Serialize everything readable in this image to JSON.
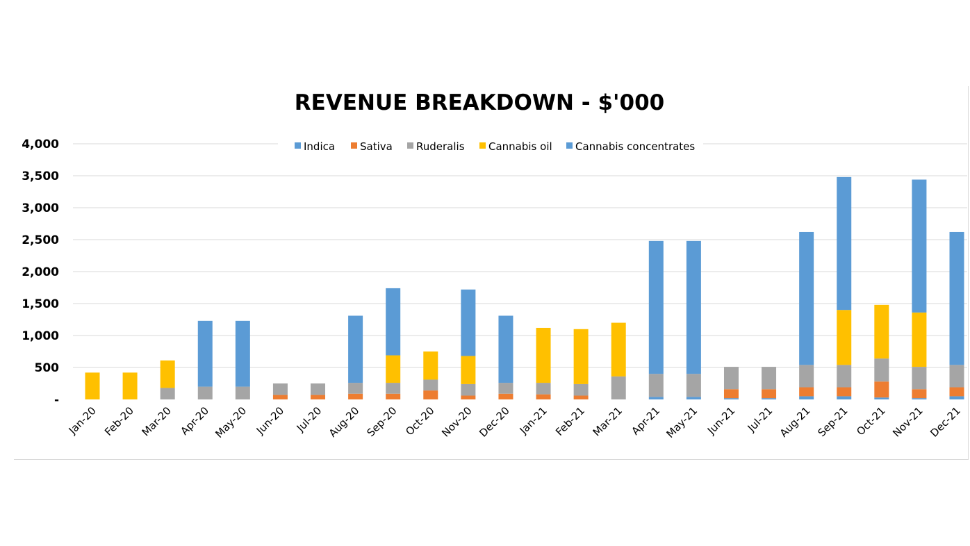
{
  "chart_data": {
    "type": "bar",
    "stacked": true,
    "title": "REVENUE BREAKDOWN - $'000",
    "xlabel": "",
    "ylabel": "",
    "ylim": [
      0,
      4000
    ],
    "yticks": [
      0,
      500,
      1000,
      1500,
      2000,
      2500,
      3000,
      3500,
      4000
    ],
    "ytick_labels": [
      "-",
      "500",
      "1,000",
      "1,500",
      "2,000",
      "2,500",
      "3,000",
      "3,500",
      "4,000"
    ],
    "grid": true,
    "legend_position": "top",
    "categories": [
      "Jan-20",
      "Feb-20",
      "Mar-20",
      "Apr-20",
      "May-20",
      "Jun-20",
      "Jul-20",
      "Aug-20",
      "Sep-20",
      "Oct-20",
      "Nov-20",
      "Dec-20",
      "Jan-21",
      "Feb-21",
      "Mar-21",
      "Apr-21",
      "May-21",
      "Jun-21",
      "Jul-21",
      "Aug-21",
      "Sep-21",
      "Oct-21",
      "Nov-21",
      "Dec-21"
    ],
    "series": [
      {
        "name": "Indica",
        "color": "#5b9bd5",
        "values": [
          0,
          0,
          0,
          0,
          0,
          0,
          0,
          0,
          0,
          0,
          0,
          0,
          0,
          0,
          0,
          40,
          40,
          20,
          20,
          50,
          50,
          30,
          20,
          50
        ]
      },
      {
        "name": "Sativa",
        "color": "#ed7d31",
        "values": [
          0,
          0,
          0,
          0,
          0,
          70,
          70,
          90,
          90,
          140,
          60,
          90,
          80,
          60,
          0,
          0,
          0,
          140,
          140,
          140,
          140,
          250,
          140,
          140
        ]
      },
      {
        "name": "Ruderalis",
        "color": "#a5a5a5",
        "values": [
          0,
          0,
          180,
          200,
          200,
          180,
          180,
          170,
          170,
          170,
          180,
          170,
          180,
          180,
          360,
          360,
          360,
          350,
          350,
          350,
          350,
          360,
          350,
          350
        ]
      },
      {
        "name": "Cannabis oil",
        "color": "#ffc000",
        "values": [
          420,
          420,
          430,
          0,
          0,
          0,
          0,
          0,
          430,
          440,
          440,
          0,
          860,
          860,
          840,
          0,
          0,
          0,
          0,
          0,
          860,
          840,
          850,
          0
        ]
      },
      {
        "name": "Cannabis concentrates",
        "color": "#5b9bd5",
        "values": [
          0,
          0,
          0,
          1030,
          1030,
          0,
          0,
          1050,
          1050,
          0,
          1040,
          1050,
          0,
          0,
          0,
          2080,
          2080,
          0,
          0,
          2080,
          2080,
          0,
          2080,
          2080
        ]
      }
    ]
  }
}
